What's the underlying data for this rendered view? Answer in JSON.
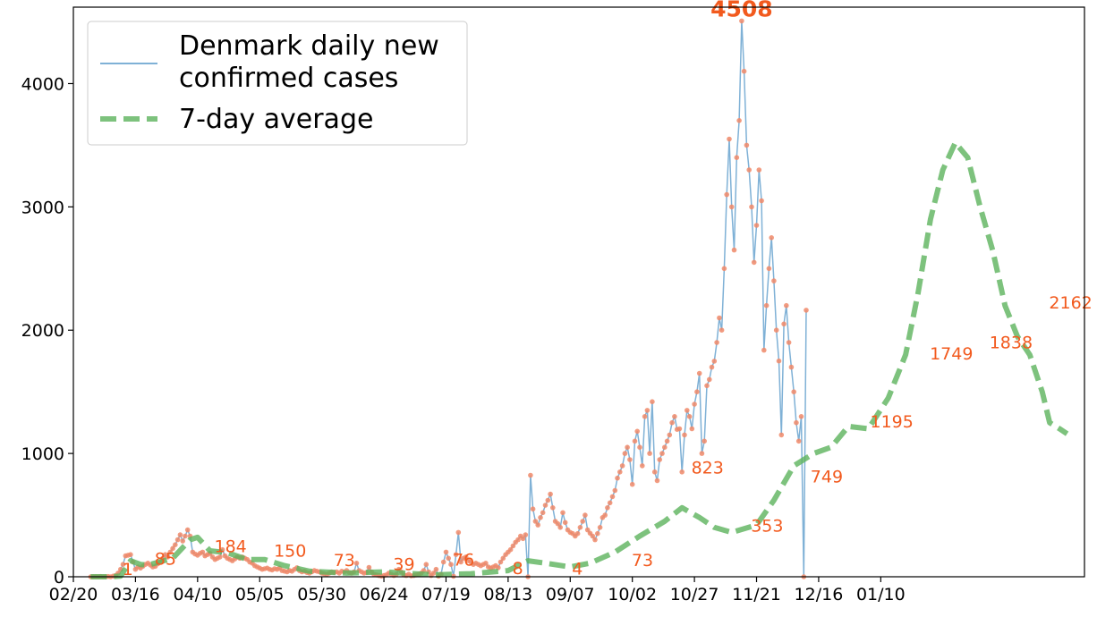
{
  "chart_data": {
    "type": "line",
    "title": "",
    "xlabel": "",
    "ylabel": "",
    "ylim": [
      0,
      4620
    ],
    "yticks": [
      0,
      1000,
      2000,
      3000,
      4000
    ],
    "xtick_labels": [
      "02/20",
      "03/16",
      "04/10",
      "05/05",
      "05/30",
      "06/24",
      "07/19",
      "08/13",
      "09/07",
      "10/02",
      "10/27",
      "11/21",
      "12/16",
      "01/10"
    ],
    "grid": false,
    "legend": {
      "placement": "top-left",
      "entries": [
        "Denmark daily new\nconfirmed cases",
        "7-day average"
      ]
    },
    "colors": {
      "daily_line": "#7fb1d6",
      "points": "#f08a6a",
      "avg_line": "#5cb35c",
      "annotations": "#f25a1e"
    },
    "series": [
      {
        "name": "Denmark daily new confirmed cases",
        "x_start_day": 7,
        "values": [
          0,
          0,
          1,
          0,
          2,
          0,
          1,
          2,
          0,
          5,
          10,
          30,
          60,
          100,
          170,
          175,
          180,
          120,
          60,
          80,
          70,
          85,
          100,
          110,
          95,
          80,
          85,
          105,
          120,
          150,
          180,
          160,
          200,
          230,
          260,
          300,
          340,
          290,
          330,
          380,
          330,
          200,
          185,
          175,
          190,
          200,
          170,
          180,
          190,
          160,
          140,
          150,
          160,
          220,
          170,
          150,
          140,
          130,
          145,
          160,
          150,
          160,
          150,
          140,
          120,
          110,
          90,
          80,
          70,
          60,
          65,
          70,
          60,
          55,
          65,
          60,
          70,
          50,
          45,
          40,
          50,
          45,
          60,
          73,
          50,
          40,
          45,
          35,
          30,
          40,
          50,
          45,
          40,
          30,
          25,
          20,
          30,
          39,
          35,
          40,
          30,
          45,
          40,
          50,
          35,
          30,
          40,
          110,
          50,
          40,
          30,
          35,
          76,
          40,
          20,
          15,
          10,
          5,
          10,
          15,
          30,
          20,
          10,
          20,
          60,
          40,
          15,
          10,
          20,
          8,
          10,
          15,
          20,
          30,
          50,
          100,
          40,
          10,
          30,
          60,
          5,
          20,
          120,
          200,
          150,
          100,
          4,
          180,
          360,
          120,
          150,
          160,
          130,
          120,
          100,
          110,
          100,
          90,
          100,
          110,
          80,
          70,
          80,
          90,
          73,
          120,
          150,
          180,
          200,
          220,
          250,
          280,
          300,
          330,
          310,
          340,
          0,
          823,
          550,
          450,
          420,
          480,
          520,
          580,
          620,
          670,
          560,
          450,
          430,
          400,
          520,
          440,
          380,
          360,
          350,
          330,
          350,
          400,
          450,
          500,
          380,
          353,
          330,
          300,
          350,
          400,
          480,
          500,
          560,
          600,
          650,
          700,
          800,
          850,
          900,
          1000,
          1050,
          950,
          749,
          1100,
          1180,
          1050,
          900,
          1300,
          1350,
          1000,
          1420,
          850,
          780,
          950,
          1000,
          1050,
          1100,
          1150,
          1250,
          1300,
          1195,
          1200,
          850,
          1150,
          1350,
          1300,
          1200,
          1400,
          1500,
          1650,
          1000,
          1100,
          1550,
          1600,
          1700,
          1749,
          1900,
          2100,
          2000,
          2500,
          3100,
          3550,
          3000,
          2650,
          3400,
          3700,
          4508,
          4100,
          3500,
          3300,
          3000,
          2550,
          2850,
          3300,
          3050,
          1838,
          2200,
          2500,
          2750,
          2400,
          2000,
          1750,
          1150,
          2050,
          2200,
          1900,
          1700,
          1500,
          1250,
          1100,
          1300,
          0,
          2162
        ]
      },
      {
        "name": "7-day average",
        "keypoints": [
          [
            7,
            0
          ],
          [
            15,
            0
          ],
          [
            19,
            5
          ],
          [
            23,
            130
          ],
          [
            27,
            100
          ],
          [
            30,
            95
          ],
          [
            40,
            150
          ],
          [
            47,
            300
          ],
          [
            50,
            320
          ],
          [
            55,
            210
          ],
          [
            62,
            195
          ],
          [
            70,
            140
          ],
          [
            77,
            140
          ],
          [
            85,
            90
          ],
          [
            95,
            45
          ],
          [
            110,
            30
          ],
          [
            125,
            40
          ],
          [
            145,
            15
          ],
          [
            160,
            25
          ],
          [
            175,
            50
          ],
          [
            183,
            130
          ],
          [
            190,
            110
          ],
          [
            200,
            80
          ],
          [
            208,
            110
          ],
          [
            218,
            200
          ],
          [
            228,
            330
          ],
          [
            238,
            450
          ],
          [
            245,
            560
          ],
          [
            252,
            480
          ],
          [
            258,
            400
          ],
          [
            265,
            360
          ],
          [
            275,
            420
          ],
          [
            282,
            620
          ],
          [
            290,
            900
          ],
          [
            298,
            1000
          ],
          [
            305,
            1050
          ],
          [
            312,
            1220
          ],
          [
            320,
            1200
          ],
          [
            328,
            1450
          ],
          [
            335,
            1800
          ],
          [
            340,
            2300
          ],
          [
            345,
            2900
          ],
          [
            350,
            3300
          ],
          [
            355,
            3520
          ],
          [
            360,
            3400
          ],
          [
            365,
            3000
          ],
          [
            370,
            2650
          ],
          [
            375,
            2200
          ],
          [
            380,
            1950
          ],
          [
            385,
            1800
          ],
          [
            390,
            1500
          ],
          [
            393,
            1250
          ],
          [
            397,
            1200
          ],
          [
            400,
            1160
          ]
        ]
      }
    ],
    "annotations": [
      {
        "x": 19,
        "y": 1,
        "label": "1"
      },
      {
        "x": 32,
        "y": 85,
        "label": "85"
      },
      {
        "x": 56,
        "y": 184,
        "label": "184"
      },
      {
        "x": 80,
        "y": 150,
        "label": "150"
      },
      {
        "x": 104,
        "y": 73,
        "label": "73"
      },
      {
        "x": 128,
        "y": 39,
        "label": "39"
      },
      {
        "x": 152,
        "y": 76,
        "label": "76"
      },
      {
        "x": 176,
        "y": 8,
        "label": "8"
      },
      {
        "x": 200,
        "y": 4,
        "label": "4"
      },
      {
        "x": 224,
        "y": 73,
        "label": "73"
      },
      {
        "x": 248,
        "y": 823,
        "label": "823"
      },
      {
        "x": 272,
        "y": 353,
        "label": "353"
      },
      {
        "x": 296,
        "y": 749,
        "label": "749"
      },
      {
        "x": 320,
        "y": 1195,
        "label": "1195"
      },
      {
        "x": 344,
        "y": 1749,
        "label": "1749"
      },
      {
        "x": 368,
        "y": 1838,
        "label": "1838"
      },
      {
        "x": 392,
        "y": 2162,
        "label": "2162"
      }
    ],
    "peak": {
      "label": "4508",
      "value": 4508
    }
  }
}
